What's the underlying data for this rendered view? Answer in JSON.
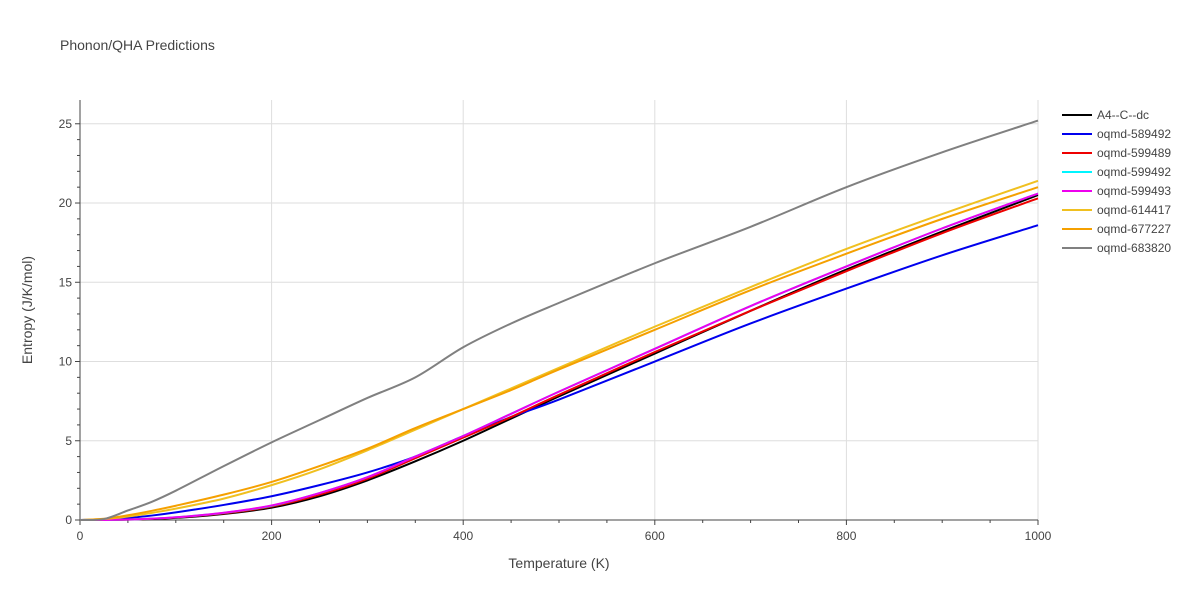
{
  "chart_data": {
    "type": "line",
    "title": "Phonon/QHA Predictions",
    "xlabel": "Temperature (K)",
    "ylabel": "Entropy (J/K/mol)",
    "xlim": [
      0,
      1000
    ],
    "ylim": [
      0,
      26.5
    ],
    "xticks": [
      0,
      200,
      400,
      600,
      800,
      1000
    ],
    "yticks": [
      0,
      5,
      10,
      15,
      20,
      25
    ],
    "grid": true,
    "legend_position": "top-right",
    "x": [
      0,
      25,
      50,
      75,
      100,
      150,
      200,
      250,
      300,
      350,
      400,
      450,
      500,
      600,
      700,
      800,
      900,
      1000
    ],
    "series": [
      {
        "name": "A4--C--dc",
        "color": "#000000",
        "values": [
          0,
          0.0,
          0.02,
          0.06,
          0.13,
          0.38,
          0.78,
          1.5,
          2.5,
          3.7,
          5.0,
          6.4,
          7.8,
          10.5,
          13.2,
          15.8,
          18.2,
          20.5
        ]
      },
      {
        "name": "oqmd-589492",
        "color": "#0000ee",
        "values": [
          0,
          0.03,
          0.13,
          0.28,
          0.48,
          0.95,
          1.5,
          2.2,
          3.0,
          4.0,
          5.3,
          6.5,
          7.6,
          10.0,
          12.4,
          14.6,
          16.7,
          18.6
        ]
      },
      {
        "name": "oqmd-599489",
        "color": "#ee0000",
        "values": [
          0,
          0.0,
          0.03,
          0.08,
          0.16,
          0.42,
          0.85,
          1.6,
          2.6,
          3.9,
          5.2,
          6.5,
          7.9,
          10.6,
          13.2,
          15.7,
          18.1,
          20.3
        ]
      },
      {
        "name": "oqmd-599492",
        "color": "#00f5ff",
        "values": [
          0,
          0.0,
          0.03,
          0.09,
          0.17,
          0.45,
          0.9,
          1.7,
          2.7,
          4.0,
          5.3,
          6.7,
          8.1,
          10.8,
          13.5,
          16.0,
          18.4,
          20.6
        ]
      },
      {
        "name": "oqmd-599493",
        "color": "#ee00ee",
        "values": [
          0,
          0.0,
          0.03,
          0.09,
          0.17,
          0.46,
          0.92,
          1.7,
          2.7,
          4.0,
          5.3,
          6.7,
          8.1,
          10.8,
          13.5,
          16.0,
          18.4,
          20.6
        ]
      },
      {
        "name": "oqmd-614417",
        "color": "#f0c020",
        "values": [
          0,
          0.06,
          0.22,
          0.45,
          0.72,
          1.35,
          2.2,
          3.2,
          4.4,
          5.7,
          7.0,
          8.3,
          9.6,
          12.2,
          14.7,
          17.1,
          19.3,
          21.4
        ]
      },
      {
        "name": "oqmd-677227",
        "color": "#f5a000",
        "values": [
          0,
          0.08,
          0.3,
          0.58,
          0.9,
          1.6,
          2.4,
          3.4,
          4.5,
          5.8,
          7.0,
          8.2,
          9.5,
          12.0,
          14.5,
          16.8,
          19.0,
          21.0
        ]
      },
      {
        "name": "oqmd-683820",
        "color": "#808080",
        "values": [
          0,
          0.06,
          0.6,
          1.15,
          1.85,
          3.4,
          4.9,
          6.3,
          7.7,
          9.0,
          10.9,
          12.4,
          13.7,
          16.2,
          18.5,
          21.0,
          23.2,
          25.2
        ]
      }
    ]
  }
}
